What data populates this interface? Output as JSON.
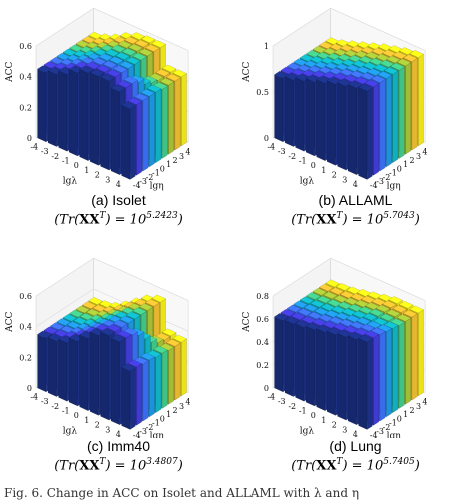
{
  "chart_data": [
    {
      "type": "bar3d",
      "x_ticks": [
        "-4",
        "-3",
        "-2",
        "-1",
        "0",
        "1",
        "2",
        "3",
        "4"
      ],
      "y_ticks": [
        "-4",
        "-3",
        "-2",
        "-1",
        "0",
        "1",
        "2",
        "3",
        "4"
      ],
      "xlabel": "lgλ",
      "ylabel": "lgη",
      "zlabel": "ACC",
      "z_ticks": [
        "0",
        "0.2",
        "0.4",
        "0.6"
      ],
      "zlim": [
        0,
        0.6
      ],
      "caption": "(a) Isolet",
      "formula_exponent": "5.2423",
      "values": [
        [
          0.45,
          0.45,
          0.45,
          0.45,
          0.45,
          0.45,
          0.45,
          0.45,
          0.45
        ],
        [
          0.47,
          0.47,
          0.47,
          0.47,
          0.47,
          0.47,
          0.47,
          0.47,
          0.47
        ],
        [
          0.5,
          0.5,
          0.5,
          0.5,
          0.5,
          0.5,
          0.5,
          0.5,
          0.5
        ],
        [
          0.54,
          0.54,
          0.54,
          0.54,
          0.54,
          0.54,
          0.54,
          0.54,
          0.54
        ],
        [
          0.57,
          0.57,
          0.57,
          0.57,
          0.57,
          0.57,
          0.57,
          0.57,
          0.57
        ],
        [
          0.58,
          0.58,
          0.58,
          0.58,
          0.58,
          0.58,
          0.58,
          0.58,
          0.58
        ],
        [
          0.58,
          0.58,
          0.58,
          0.58,
          0.58,
          0.58,
          0.58,
          0.58,
          0.58
        ],
        [
          0.54,
          0.54,
          0.54,
          0.52,
          0.48,
          0.46,
          0.45,
          0.45,
          0.45
        ],
        [
          0.46,
          0.46,
          0.46,
          0.46,
          0.46,
          0.45,
          0.45,
          0.45,
          0.45
        ]
      ]
    },
    {
      "type": "bar3d",
      "x_ticks": [
        "-4",
        "-3",
        "-2",
        "-1",
        "0",
        "1",
        "2",
        "3",
        "4"
      ],
      "y_ticks": [
        "-4",
        "-3",
        "-2",
        "-1",
        "0",
        "1",
        "2",
        "3",
        "4"
      ],
      "xlabel": "lgλ",
      "ylabel": "lgη",
      "zlabel": "ACC",
      "z_ticks": [
        "0",
        "0.5",
        "1"
      ],
      "zlim": [
        0,
        1
      ],
      "caption": "(b) ALLAML",
      "formula_exponent": "5.7043",
      "values": [
        [
          0.69,
          0.69,
          0.69,
          0.69,
          0.69,
          0.69,
          0.69,
          0.69,
          0.69
        ],
        [
          0.72,
          0.72,
          0.72,
          0.72,
          0.72,
          0.72,
          0.72,
          0.72,
          0.72
        ],
        [
          0.76,
          0.76,
          0.76,
          0.76,
          0.76,
          0.76,
          0.76,
          0.76,
          0.76
        ],
        [
          0.8,
          0.8,
          0.8,
          0.8,
          0.8,
          0.8,
          0.8,
          0.8,
          0.8
        ],
        [
          0.84,
          0.84,
          0.84,
          0.84,
          0.84,
          0.84,
          0.84,
          0.84,
          0.84
        ],
        [
          0.88,
          0.88,
          0.88,
          0.88,
          0.88,
          0.88,
          0.88,
          0.88,
          0.88
        ],
        [
          0.91,
          0.91,
          0.91,
          0.91,
          0.91,
          0.91,
          0.91,
          0.91,
          0.91
        ],
        [
          0.94,
          0.94,
          0.94,
          0.94,
          0.94,
          0.94,
          0.94,
          0.94,
          0.94
        ],
        [
          0.96,
          0.96,
          0.96,
          0.96,
          0.96,
          0.96,
          0.96,
          0.96,
          0.96
        ]
      ]
    },
    {
      "type": "bar3d",
      "x_ticks": [
        "-4",
        "-3",
        "-2",
        "-1",
        "0",
        "1",
        "2",
        "3",
        "4"
      ],
      "y_ticks": [
        "-4",
        "-3",
        "-2",
        "-1",
        "0",
        "1",
        "2",
        "3",
        "4"
      ],
      "xlabel": "lgλ",
      "ylabel": "lgη",
      "zlabel": "ACC",
      "z_ticks": [
        "0",
        "0.2",
        "0.4",
        "0.6"
      ],
      "zlim": [
        0,
        0.6
      ],
      "caption": "(c) Imm40",
      "formula_exponent": "3.4807",
      "values": [
        [
          0.35,
          0.35,
          0.35,
          0.35,
          0.35,
          0.35,
          0.35,
          0.35,
          0.35
        ],
        [
          0.36,
          0.36,
          0.36,
          0.36,
          0.36,
          0.36,
          0.36,
          0.36,
          0.36
        ],
        [
          0.38,
          0.38,
          0.38,
          0.38,
          0.38,
          0.38,
          0.38,
          0.38,
          0.38
        ],
        [
          0.42,
          0.42,
          0.42,
          0.42,
          0.42,
          0.42,
          0.42,
          0.42,
          0.42
        ],
        [
          0.47,
          0.47,
          0.47,
          0.47,
          0.47,
          0.47,
          0.47,
          0.47,
          0.47
        ],
        [
          0.52,
          0.52,
          0.52,
          0.52,
          0.52,
          0.52,
          0.52,
          0.52,
          0.52
        ],
        [
          0.55,
          0.55,
          0.55,
          0.55,
          0.55,
          0.55,
          0.55,
          0.55,
          0.55
        ],
        [
          0.54,
          0.54,
          0.53,
          0.5,
          0.45,
          0.4,
          0.37,
          0.36,
          0.36
        ],
        [
          0.38,
          0.38,
          0.37,
          0.37,
          0.36,
          0.36,
          0.35,
          0.35,
          0.35
        ]
      ]
    },
    {
      "type": "bar3d",
      "x_ticks": [
        "-4",
        "-3",
        "-2",
        "-1",
        "0",
        "1",
        "2",
        "3",
        "4"
      ],
      "y_ticks": [
        "-4",
        "-3",
        "-2",
        "-1",
        "0",
        "1",
        "2",
        "3",
        "4"
      ],
      "xlabel": "lgλ",
      "ylabel": "lgη",
      "zlabel": "ACC",
      "z_ticks": [
        "0",
        "0.2",
        "0.4",
        "0.6",
        "0.8"
      ],
      "zlim": [
        0,
        0.8
      ],
      "caption": "(d) Lung",
      "formula_exponent": "5.7405",
      "values": [
        [
          0.62,
          0.62,
          0.62,
          0.62,
          0.62,
          0.62,
          0.62,
          0.62,
          0.62
        ],
        [
          0.63,
          0.63,
          0.63,
          0.63,
          0.63,
          0.63,
          0.63,
          0.63,
          0.63
        ],
        [
          0.64,
          0.64,
          0.64,
          0.64,
          0.64,
          0.64,
          0.64,
          0.64,
          0.64
        ],
        [
          0.66,
          0.66,
          0.66,
          0.66,
          0.66,
          0.66,
          0.66,
          0.66,
          0.66
        ],
        [
          0.68,
          0.68,
          0.68,
          0.68,
          0.68,
          0.68,
          0.68,
          0.68,
          0.68
        ],
        [
          0.7,
          0.7,
          0.7,
          0.7,
          0.7,
          0.7,
          0.7,
          0.7,
          0.7
        ],
        [
          0.72,
          0.72,
          0.72,
          0.72,
          0.72,
          0.72,
          0.72,
          0.72,
          0.72
        ],
        [
          0.74,
          0.74,
          0.74,
          0.73,
          0.72,
          0.72,
          0.72,
          0.72,
          0.72
        ],
        [
          0.76,
          0.76,
          0.75,
          0.74,
          0.73,
          0.72,
          0.72,
          0.72,
          0.72
        ]
      ]
    }
  ],
  "formula": {
    "prefix": "(Tr(",
    "matrix": "XX",
    "transpose": "T",
    "mid": ") = 10",
    "suffix": ")"
  },
  "footer_text": "Fig. 6. Change in ACC on Isolet and ALLAML with λ and η"
}
